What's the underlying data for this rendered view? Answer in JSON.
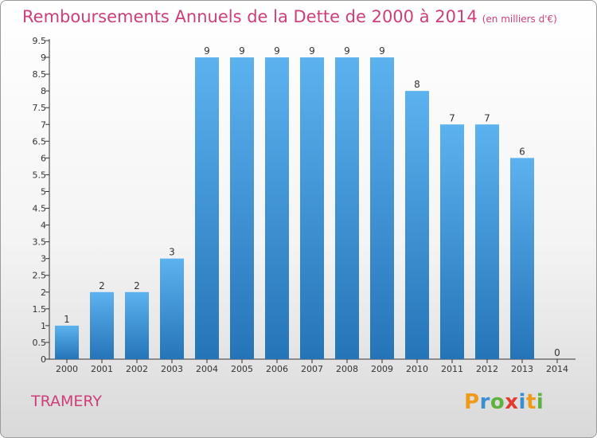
{
  "title": "Remboursements Annuels de la Dette de 2000 à 2014",
  "unit": "(en milliers d'€)",
  "place": "TRAMERY",
  "logo": "Proxiti",
  "colors": {
    "title": "#cc3f7a",
    "bar_top": "#5cb2ee",
    "bar_bottom": "#2574b8"
  },
  "chart_data": {
    "type": "bar",
    "title": "Remboursements Annuels de la Dette de 2000 à 2014",
    "xlabel": "",
    "ylabel": "",
    "categories": [
      "2000",
      "2001",
      "2002",
      "2003",
      "2004",
      "2005",
      "2006",
      "2007",
      "2008",
      "2009",
      "2010",
      "2011",
      "2012",
      "2013",
      "2014"
    ],
    "values": [
      1,
      2,
      2,
      3,
      9,
      9,
      9,
      9,
      9,
      9,
      8,
      7,
      7,
      6,
      0
    ],
    "ylim": [
      0,
      9.5
    ],
    "yticks": [
      "0",
      "0.5",
      "1",
      "1.5",
      "2",
      "2.5",
      "3",
      "3.5",
      "4",
      "4.5",
      "5",
      "5.5",
      "6",
      "6.5",
      "7",
      "7.5",
      "8",
      "8.5",
      "9",
      "9.5"
    ],
    "grid": false,
    "legend": "none"
  }
}
